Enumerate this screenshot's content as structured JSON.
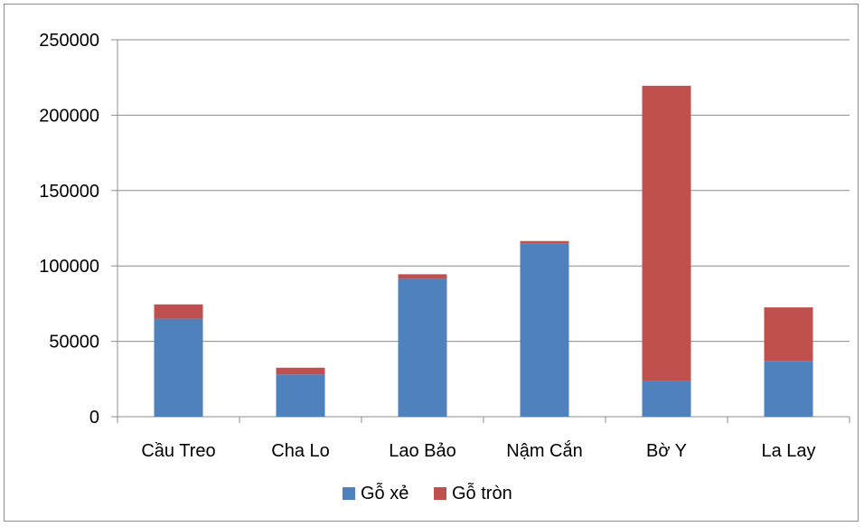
{
  "chart_data": {
    "type": "bar",
    "stacked": true,
    "categories": [
      "Cầu Treo",
      "Cha Lo",
      "Lao Bảo",
      "Nậm Cắn",
      "Bờ Y",
      "La Lay"
    ],
    "series": [
      {
        "name": "Gỗ xẻ",
        "color": "#4f81bd",
        "values": [
          65000,
          28000,
          91500,
          115000,
          23500,
          37000
        ]
      },
      {
        "name": "Gỗ tròn",
        "color": "#c0504d",
        "values": [
          9500,
          4500,
          3000,
          1500,
          196000,
          35500
        ]
      }
    ],
    "y_ticks": [
      0,
      50000,
      100000,
      150000,
      200000,
      250000
    ],
    "ylim": [
      0,
      250000
    ],
    "grid": true,
    "legend_position": "bottom"
  }
}
